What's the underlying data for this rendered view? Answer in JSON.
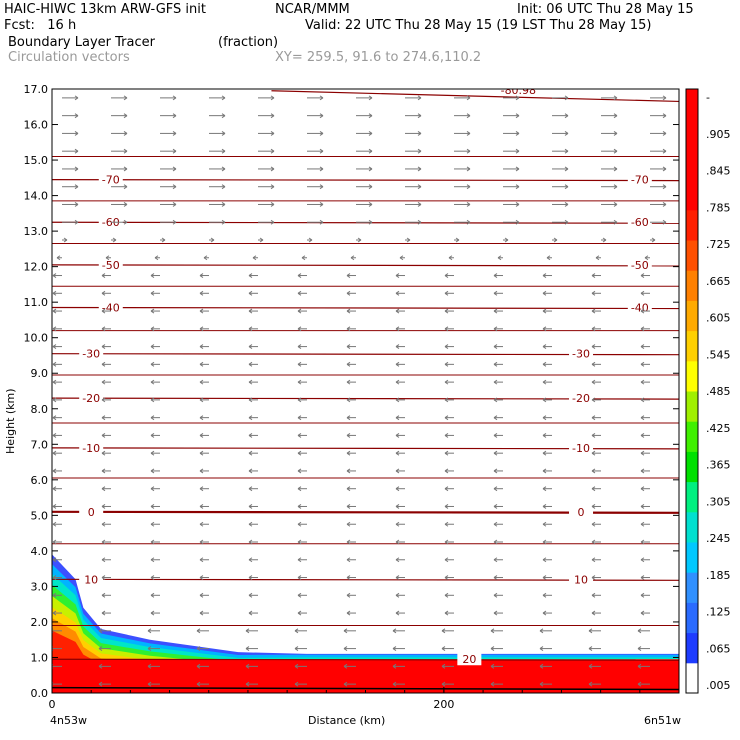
{
  "header": {
    "line1_left": "HAIC-HIWC 13km ARW-GFS init",
    "line1_mid": "NCAR/MMM",
    "line1_right": "Init: 06 UTC Thu 28 May 15",
    "line2_left": "Fcst:   16 h",
    "line2_right": "Valid: 22 UTC Thu 28 May 15 (19 LST Thu 28 May 15)",
    "field1_name": "Boundary Layer Tracer",
    "field1_units": "(fraction)",
    "field2_name": "Circulation vectors",
    "xy_text": "XY= 259.5, 91.6 to 274.6,110.2"
  },
  "chart_data": {
    "type": "heatmap",
    "title": "Boundary Layer Tracer",
    "units": "(fraction)",
    "xlabel": "Distance (km)",
    "ylabel": "Height (km)",
    "xlim": [
      0,
      320
    ],
    "ylim": [
      0,
      17
    ],
    "x_ticks": [
      0,
      200
    ],
    "x_tick_labels": [
      "0",
      "200"
    ],
    "x_end_labels": [
      "4n53w",
      "6n51w"
    ],
    "y_ticks": [
      0,
      1,
      2,
      3,
      4,
      5,
      6,
      7,
      8,
      9,
      10,
      11,
      12,
      13,
      14,
      15,
      16,
      17
    ],
    "y_tick_labels": [
      "0.0",
      "1.0",
      "2.0",
      "3.0",
      "4.0",
      "5.0",
      "6.0",
      "7.0",
      "8.0",
      "9.0",
      "10.0",
      "11.0",
      "12.0",
      "13.0",
      "14.0",
      "15.0",
      "16.0",
      "17.0"
    ],
    "colorbar": {
      "labels": [
        ".005",
        ".065",
        ".125",
        ".185",
        ".245",
        ".305",
        ".365",
        ".425",
        ".485",
        ".545",
        ".605",
        ".665",
        ".725",
        ".785",
        ".845",
        ".905",
        "-"
      ],
      "colors": [
        "#ffffff",
        "#1e3cff",
        "#2a6bff",
        "#3090ff",
        "#00c8ff",
        "#00e0d0",
        "#00f080",
        "#00e000",
        "#40f000",
        "#a0f000",
        "#ffff00",
        "#ffd000",
        "#ffaa00",
        "#ff8000",
        "#ff5000",
        "#ff2000",
        "#ff0000",
        "#ff0000",
        "#ff0000",
        "#ff0000"
      ]
    },
    "temperature_contours": [
      {
        "level": "10",
        "height_km": 3.2
      },
      {
        "level": "0",
        "height_km": 5.1
      },
      {
        "level": "-10",
        "height_km": 6.9
      },
      {
        "level": "-20",
        "height_km": 8.3
      },
      {
        "level": "-30",
        "height_km": 9.55
      },
      {
        "level": "-40",
        "height_km": 10.85
      },
      {
        "level": "-50",
        "height_km": 12.05
      },
      {
        "level": "-60",
        "height_km": 13.25
      },
      {
        "level": "-70",
        "height_km": 14.45
      },
      {
        "level": "20",
        "height_km": 0.95
      }
    ],
    "top_contour_label": "-80.98",
    "tracer_region": [
      {
        "x": 0,
        "top_km": 3.9
      },
      {
        "x": 12,
        "top_km": 3.2
      },
      {
        "x": 16,
        "top_km": 2.4
      },
      {
        "x": 25,
        "top_km": 1.8
      },
      {
        "x": 50,
        "top_km": 1.5
      },
      {
        "x": 95,
        "top_km": 1.15
      },
      {
        "x": 130,
        "top_km": 1.1
      },
      {
        "x": 200,
        "top_km": 1.1
      },
      {
        "x": 320,
        "top_km": 1.1
      }
    ],
    "colors": {
      "contour": "#8b0000",
      "vector": "#777777"
    }
  }
}
